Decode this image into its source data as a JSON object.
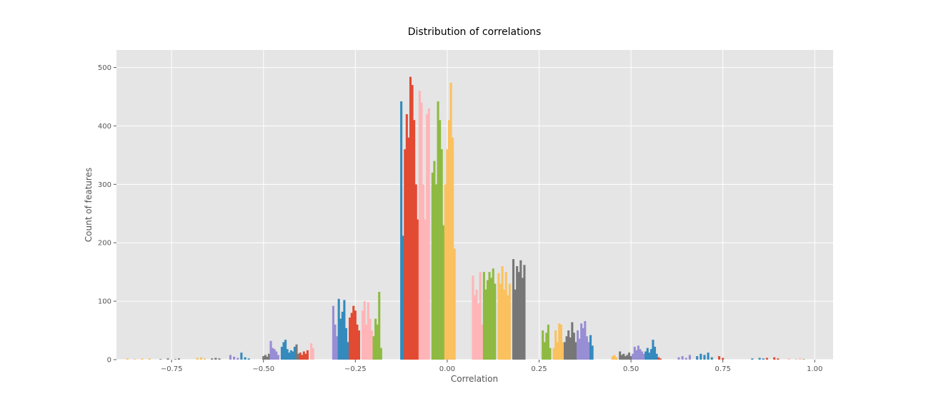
{
  "chart_data": {
    "type": "bar",
    "title": "Distribution of correlations",
    "xlabel": "Correlation",
    "ylabel": "Count of features",
    "xlim": [
      -0.9,
      1.05
    ],
    "ylim": [
      0,
      530
    ],
    "grid": true,
    "xticks": [
      -0.75,
      -0.5,
      -0.25,
      0.0,
      0.25,
      0.5,
      0.75,
      1.0
    ],
    "xtick_labels": [
      "−0.75",
      "−0.50",
      "−0.25",
      "0.00",
      "0.25",
      "0.50",
      "0.75",
      "1.00"
    ],
    "yticks": [
      0,
      100,
      200,
      300,
      400,
      500
    ],
    "ytick_labels": [
      "0",
      "100",
      "200",
      "300",
      "400",
      "500"
    ],
    "colors": {
      "background": "#e5e5e5",
      "grid": "#ffffff",
      "palette": [
        "#348abd",
        "#e24a33",
        "#ffb5b8",
        "#8eba42",
        "#fbc15e",
        "#777777",
        "#988ed5"
      ]
    },
    "groups": [
      {
        "color": "#fbc15e",
        "bars": [
          {
            "x": -0.87,
            "y": 2
          },
          {
            "x": -0.85,
            "y": 1
          },
          {
            "x": -0.83,
            "y": 2
          },
          {
            "x": -0.81,
            "y": 2
          }
        ]
      },
      {
        "color": "#777777",
        "bars": [
          {
            "x": -0.78,
            "y": 1
          },
          {
            "x": -0.76,
            "y": 2
          },
          {
            "x": -0.74,
            "y": 1
          },
          {
            "x": -0.73,
            "y": 2
          }
        ]
      },
      {
        "color": "#fbc15e",
        "bars": [
          {
            "x": -0.68,
            "y": 3
          },
          {
            "x": -0.67,
            "y": 4
          },
          {
            "x": -0.66,
            "y": 2
          }
        ]
      },
      {
        "color": "#777777",
        "bars": [
          {
            "x": -0.64,
            "y": 2
          },
          {
            "x": -0.63,
            "y": 3
          },
          {
            "x": -0.62,
            "y": 2
          }
        ]
      },
      {
        "color": "#988ed5",
        "bars": [
          {
            "x": -0.59,
            "y": 8
          },
          {
            "x": -0.58,
            "y": 5
          },
          {
            "x": -0.57,
            "y": 3
          }
        ]
      },
      {
        "color": "#348abd",
        "bars": [
          {
            "x": -0.56,
            "y": 12
          },
          {
            "x": -0.55,
            "y": 4
          },
          {
            "x": -0.54,
            "y": 2
          }
        ]
      },
      {
        "color": "#777777",
        "bars": [
          {
            "x": -0.5,
            "y": 6
          },
          {
            "x": -0.495,
            "y": 8
          },
          {
            "x": -0.49,
            "y": 5
          },
          {
            "x": -0.485,
            "y": 10
          }
        ]
      },
      {
        "color": "#988ed5",
        "bars": [
          {
            "x": -0.48,
            "y": 32
          },
          {
            "x": -0.475,
            "y": 20
          },
          {
            "x": -0.47,
            "y": 18
          },
          {
            "x": -0.465,
            "y": 14
          },
          {
            "x": -0.46,
            "y": 8
          }
        ]
      },
      {
        "color": "#348abd",
        "bars": [
          {
            "x": -0.45,
            "y": 22
          },
          {
            "x": -0.445,
            "y": 30
          },
          {
            "x": -0.44,
            "y": 34
          },
          {
            "x": -0.435,
            "y": 18
          }
        ]
      },
      {
        "color": "#348abd",
        "bars": [
          {
            "x": -0.43,
            "y": 12
          },
          {
            "x": -0.425,
            "y": 16
          },
          {
            "x": -0.42,
            "y": 14
          },
          {
            "x": -0.415,
            "y": 22
          }
        ]
      },
      {
        "color": "#777777",
        "bars": [
          {
            "x": -0.41,
            "y": 26
          },
          {
            "x": -0.405,
            "y": 10
          }
        ]
      },
      {
        "color": "#e24a33",
        "bars": [
          {
            "x": -0.4,
            "y": 12
          },
          {
            "x": -0.395,
            "y": 8
          },
          {
            "x": -0.39,
            "y": 14
          },
          {
            "x": -0.385,
            "y": 10
          },
          {
            "x": -0.38,
            "y": 16
          }
        ]
      },
      {
        "color": "#ffb5b8",
        "bars": [
          {
            "x": -0.37,
            "y": 28
          },
          {
            "x": -0.365,
            "y": 20
          }
        ]
      },
      {
        "color": "#988ed5",
        "bars": [
          {
            "x": -0.31,
            "y": 92
          },
          {
            "x": -0.305,
            "y": 60
          },
          {
            "x": -0.3,
            "y": 40
          }
        ]
      },
      {
        "color": "#348abd",
        "bars": [
          {
            "x": -0.295,
            "y": 104
          },
          {
            "x": -0.29,
            "y": 70
          },
          {
            "x": -0.285,
            "y": 82
          },
          {
            "x": -0.28,
            "y": 102
          },
          {
            "x": -0.275,
            "y": 54
          },
          {
            "x": -0.27,
            "y": 30
          }
        ]
      },
      {
        "color": "#e24a33",
        "bars": [
          {
            "x": -0.265,
            "y": 72
          },
          {
            "x": -0.26,
            "y": 80
          },
          {
            "x": -0.255,
            "y": 92
          },
          {
            "x": -0.25,
            "y": 84
          },
          {
            "x": -0.245,
            "y": 60
          },
          {
            "x": -0.24,
            "y": 50
          }
        ]
      },
      {
        "color": "#ffb5b8",
        "bars": [
          {
            "x": -0.23,
            "y": 84
          },
          {
            "x": -0.225,
            "y": 100
          },
          {
            "x": -0.22,
            "y": 60
          },
          {
            "x": -0.215,
            "y": 98
          },
          {
            "x": -0.21,
            "y": 70
          },
          {
            "x": -0.205,
            "y": 50
          }
        ]
      },
      {
        "color": "#8eba42",
        "bars": [
          {
            "x": -0.2,
            "y": 40
          },
          {
            "x": -0.195,
            "y": 70
          },
          {
            "x": -0.19,
            "y": 60
          },
          {
            "x": -0.185,
            "y": 116
          },
          {
            "x": -0.18,
            "y": 20
          }
        ]
      },
      {
        "color": "#348abd",
        "bars": [
          {
            "x": -0.125,
            "y": 442
          },
          {
            "x": -0.12,
            "y": 212
          }
        ]
      },
      {
        "color": "#e24a33",
        "bars": [
          {
            "x": -0.115,
            "y": 360
          },
          {
            "x": -0.11,
            "y": 420
          },
          {
            "x": -0.105,
            "y": 380
          },
          {
            "x": -0.1,
            "y": 484
          },
          {
            "x": -0.095,
            "y": 470
          },
          {
            "x": -0.09,
            "y": 410
          },
          {
            "x": -0.085,
            "y": 300
          },
          {
            "x": -0.08,
            "y": 240
          }
        ]
      },
      {
        "color": "#ffb5b8",
        "bars": [
          {
            "x": -0.075,
            "y": 460
          },
          {
            "x": -0.07,
            "y": 440
          },
          {
            "x": -0.065,
            "y": 300
          },
          {
            "x": -0.06,
            "y": 240
          },
          {
            "x": -0.055,
            "y": 420
          },
          {
            "x": -0.05,
            "y": 430
          }
        ]
      },
      {
        "color": "#8eba42",
        "bars": [
          {
            "x": -0.04,
            "y": 320
          },
          {
            "x": -0.035,
            "y": 340
          },
          {
            "x": -0.03,
            "y": 300
          },
          {
            "x": -0.025,
            "y": 442
          },
          {
            "x": -0.02,
            "y": 410
          },
          {
            "x": -0.015,
            "y": 360
          },
          {
            "x": -0.01,
            "y": 230
          }
        ]
      },
      {
        "color": "#fbc15e",
        "bars": [
          {
            "x": -0.005,
            "y": 300
          },
          {
            "x": 0.0,
            "y": 360
          },
          {
            "x": 0.005,
            "y": 410
          },
          {
            "x": 0.01,
            "y": 474
          },
          {
            "x": 0.015,
            "y": 380
          },
          {
            "x": 0.02,
            "y": 190
          }
        ]
      },
      {
        "color": "#ffb5b8",
        "bars": [
          {
            "x": 0.07,
            "y": 144
          },
          {
            "x": 0.075,
            "y": 110
          },
          {
            "x": 0.08,
            "y": 120
          },
          {
            "x": 0.085,
            "y": 96
          },
          {
            "x": 0.09,
            "y": 150
          },
          {
            "x": 0.095,
            "y": 60
          }
        ]
      },
      {
        "color": "#8eba42",
        "bars": [
          {
            "x": 0.1,
            "y": 150
          },
          {
            "x": 0.105,
            "y": 120
          },
          {
            "x": 0.11,
            "y": 136
          },
          {
            "x": 0.115,
            "y": 150
          },
          {
            "x": 0.12,
            "y": 140
          },
          {
            "x": 0.125,
            "y": 156
          },
          {
            "x": 0.13,
            "y": 130
          }
        ]
      },
      {
        "color": "#fbc15e",
        "bars": [
          {
            "x": 0.14,
            "y": 148
          },
          {
            "x": 0.145,
            "y": 130
          },
          {
            "x": 0.15,
            "y": 160
          },
          {
            "x": 0.155,
            "y": 120
          },
          {
            "x": 0.16,
            "y": 150
          },
          {
            "x": 0.165,
            "y": 110
          },
          {
            "x": 0.17,
            "y": 130
          }
        ]
      },
      {
        "color": "#777777",
        "bars": [
          {
            "x": 0.18,
            "y": 172
          },
          {
            "x": 0.185,
            "y": 120
          },
          {
            "x": 0.19,
            "y": 160
          },
          {
            "x": 0.195,
            "y": 150
          },
          {
            "x": 0.2,
            "y": 170
          },
          {
            "x": 0.205,
            "y": 140
          },
          {
            "x": 0.21,
            "y": 162
          }
        ]
      },
      {
        "color": "#8eba42",
        "bars": [
          {
            "x": 0.26,
            "y": 50
          },
          {
            "x": 0.265,
            "y": 30
          },
          {
            "x": 0.27,
            "y": 46
          },
          {
            "x": 0.275,
            "y": 60
          },
          {
            "x": 0.28,
            "y": 20
          }
        ]
      },
      {
        "color": "#fbc15e",
        "bars": [
          {
            "x": 0.29,
            "y": 20
          },
          {
            "x": 0.295,
            "y": 50
          },
          {
            "x": 0.3,
            "y": 30
          },
          {
            "x": 0.305,
            "y": 62
          },
          {
            "x": 0.31,
            "y": 60
          },
          {
            "x": 0.315,
            "y": 30
          }
        ]
      },
      {
        "color": "#777777",
        "bars": [
          {
            "x": 0.32,
            "y": 30
          },
          {
            "x": 0.325,
            "y": 40
          },
          {
            "x": 0.33,
            "y": 50
          },
          {
            "x": 0.335,
            "y": 38
          },
          {
            "x": 0.34,
            "y": 64
          },
          {
            "x": 0.345,
            "y": 46
          },
          {
            "x": 0.35,
            "y": 30
          }
        ]
      },
      {
        "color": "#988ed5",
        "bars": [
          {
            "x": 0.355,
            "y": 50
          },
          {
            "x": 0.36,
            "y": 36
          },
          {
            "x": 0.365,
            "y": 62
          },
          {
            "x": 0.37,
            "y": 54
          },
          {
            "x": 0.375,
            "y": 66
          },
          {
            "x": 0.38,
            "y": 40
          },
          {
            "x": 0.385,
            "y": 30
          }
        ]
      },
      {
        "color": "#348abd",
        "bars": [
          {
            "x": 0.39,
            "y": 42
          },
          {
            "x": 0.395,
            "y": 24
          }
        ]
      },
      {
        "color": "#fbc15e",
        "bars": [
          {
            "x": 0.45,
            "y": 6
          },
          {
            "x": 0.455,
            "y": 8
          },
          {
            "x": 0.46,
            "y": 4
          }
        ]
      },
      {
        "color": "#777777",
        "bars": [
          {
            "x": 0.47,
            "y": 14
          },
          {
            "x": 0.475,
            "y": 8
          },
          {
            "x": 0.48,
            "y": 10
          },
          {
            "x": 0.485,
            "y": 6
          },
          {
            "x": 0.49,
            "y": 8
          },
          {
            "x": 0.495,
            "y": 12
          },
          {
            "x": 0.5,
            "y": 6
          }
        ]
      },
      {
        "color": "#988ed5",
        "bars": [
          {
            "x": 0.505,
            "y": 10
          },
          {
            "x": 0.51,
            "y": 22
          },
          {
            "x": 0.515,
            "y": 16
          },
          {
            "x": 0.52,
            "y": 24
          },
          {
            "x": 0.525,
            "y": 18
          },
          {
            "x": 0.53,
            "y": 14
          },
          {
            "x": 0.535,
            "y": 10
          }
        ]
      },
      {
        "color": "#348abd",
        "bars": [
          {
            "x": 0.54,
            "y": 14
          },
          {
            "x": 0.545,
            "y": 20
          },
          {
            "x": 0.55,
            "y": 12
          },
          {
            "x": 0.555,
            "y": 18
          },
          {
            "x": 0.56,
            "y": 34
          },
          {
            "x": 0.565,
            "y": 22
          },
          {
            "x": 0.57,
            "y": 10
          }
        ]
      },
      {
        "color": "#e24a33",
        "bars": [
          {
            "x": 0.575,
            "y": 4
          },
          {
            "x": 0.58,
            "y": 2
          }
        ]
      },
      {
        "color": "#988ed5",
        "bars": [
          {
            "x": 0.63,
            "y": 4
          },
          {
            "x": 0.64,
            "y": 6
          },
          {
            "x": 0.65,
            "y": 3
          },
          {
            "x": 0.66,
            "y": 8
          }
        ]
      },
      {
        "color": "#348abd",
        "bars": [
          {
            "x": 0.68,
            "y": 6
          },
          {
            "x": 0.69,
            "y": 10
          },
          {
            "x": 0.7,
            "y": 8
          },
          {
            "x": 0.71,
            "y": 12
          },
          {
            "x": 0.72,
            "y": 4
          }
        ]
      },
      {
        "color": "#e24a33",
        "bars": [
          {
            "x": 0.74,
            "y": 6
          },
          {
            "x": 0.75,
            "y": 3
          }
        ]
      },
      {
        "color": "#348abd",
        "bars": [
          {
            "x": 0.83,
            "y": 2
          },
          {
            "x": 0.85,
            "y": 3
          },
          {
            "x": 0.86,
            "y": 2
          }
        ]
      },
      {
        "color": "#e24a33",
        "bars": [
          {
            "x": 0.87,
            "y": 3
          },
          {
            "x": 0.89,
            "y": 4
          },
          {
            "x": 0.9,
            "y": 2
          }
        ]
      },
      {
        "color": "#ffb5b8",
        "bars": [
          {
            "x": 0.93,
            "y": 2
          },
          {
            "x": 0.95,
            "y": 1
          },
          {
            "x": 0.96,
            "y": 2
          }
        ]
      },
      {
        "color": "#8eba42",
        "bars": [
          {
            "x": 0.97,
            "y": 1
          }
        ]
      }
    ]
  }
}
